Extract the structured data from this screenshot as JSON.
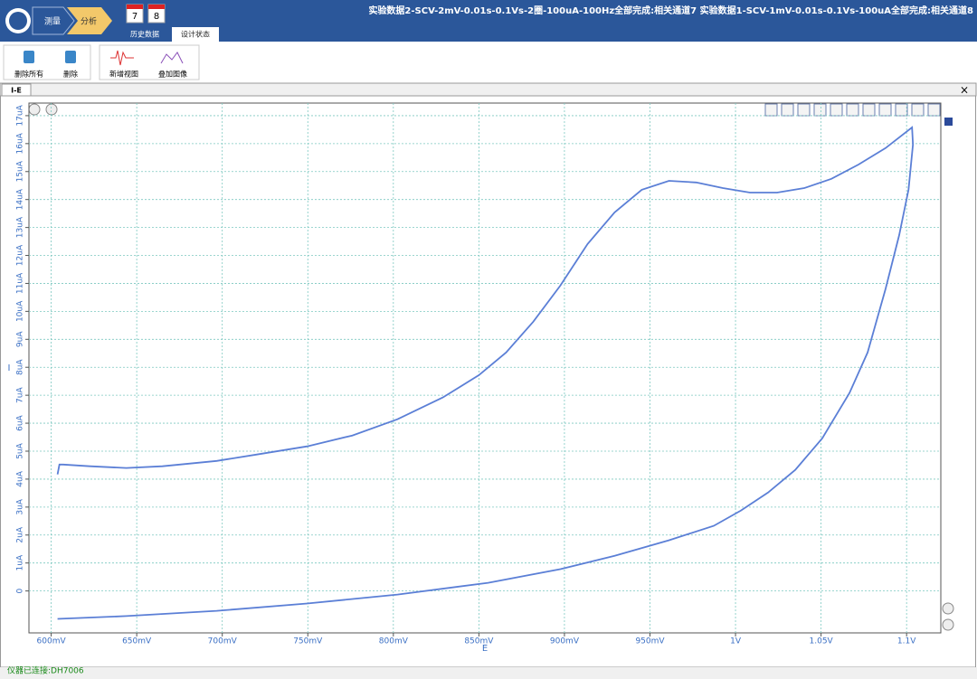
{
  "header": {
    "nav": [
      "测量",
      "分析"
    ],
    "channels": [
      "7",
      "8"
    ],
    "tabs": [
      "历史数据",
      "设计状态"
    ],
    "title": "实验数据2-SCV-2mV-0.01s-0.1Vs-2圈-100uA-100Hz全部完成:相关通道7 实验数据1-SCV-1mV-0.01s-0.1Vs-100uA全部完成:相关通道8"
  },
  "toolbar": {
    "buttons": [
      "删除所有",
      "删除",
      "新增视图",
      "叠加图像"
    ]
  },
  "view_tab": "I-E",
  "status": "仪器已连接:DH7006",
  "chart_data": {
    "type": "line",
    "x_label": "E",
    "y_label": "I",
    "x": [
      0.6037,
      0.6048,
      0.607,
      0.6227,
      0.6439,
      0.665,
      0.6967,
      0.7231,
      0.7496,
      0.776,
      0.8024,
      0.8289,
      0.85,
      0.8659,
      0.8818,
      0.8976,
      0.9135,
      0.9293,
      0.9452,
      0.9611,
      0.977,
      0.9926,
      1.0085,
      1.0243,
      1.0402,
      1.056,
      1.0719,
      1.0877,
      1.1032,
      1.1037,
      1.1011,
      1.0957,
      1.0877,
      1.0772,
      1.0666,
      1.0507,
      1.0349,
      1.019,
      1.0032,
      0.9873,
      0.961,
      0.9293,
      0.8976,
      0.8554,
      0.8024,
      0.7496,
      0.6967,
      0.6439,
      0.6037
    ],
    "series": [
      {
        "name": "I-E",
        "color": "#5b7fd6",
        "values": [
          4.17,
          4.52,
          4.52,
          4.46,
          4.4,
          4.46,
          4.65,
          4.91,
          5.17,
          5.56,
          6.14,
          6.92,
          7.72,
          8.53,
          9.63,
          10.92,
          12.41,
          13.54,
          14.35,
          14.67,
          14.61,
          14.41,
          14.25,
          14.25,
          14.41,
          14.74,
          15.25,
          15.84,
          16.58,
          15.97,
          14.35,
          12.73,
          10.8,
          8.53,
          7.08,
          5.46,
          4.33,
          3.52,
          2.88,
          2.33,
          1.81,
          1.26,
          0.78,
          0.29,
          -0.13,
          -0.45,
          -0.71,
          -0.9,
          -1.0
        ]
      }
    ],
    "xlim": [
      0.587,
      1.12
    ],
    "ylim": [
      -1.5,
      17.45
    ],
    "xticks": [
      {
        "value": 0.6,
        "label": "600mV"
      },
      {
        "value": 0.65,
        "label": "650mV"
      },
      {
        "value": 0.7,
        "label": "700mV"
      },
      {
        "value": 0.75,
        "label": "750mV"
      },
      {
        "value": 0.8,
        "label": "800mV"
      },
      {
        "value": 0.85,
        "label": "850mV"
      },
      {
        "value": 0.9,
        "label": "900mV"
      },
      {
        "value": 0.95,
        "label": "950mV"
      },
      {
        "value": 1,
        "label": "1V"
      },
      {
        "value": 1.05,
        "label": "1.05V"
      },
      {
        "value": 1.1,
        "label": "1.1V"
      }
    ],
    "yticks": [
      0,
      {
        "value": 1,
        "label": "1uA"
      },
      {
        "value": 2,
        "label": "2uA"
      },
      {
        "value": 3,
        "label": "3uA"
      },
      {
        "value": 4,
        "label": "4uA"
      },
      {
        "value": 5,
        "label": "5uA"
      },
      {
        "value": 6,
        "label": "6uA"
      },
      {
        "value": 7,
        "label": "7uA"
      },
      {
        "value": 8,
        "label": "8uA"
      },
      {
        "value": 9,
        "label": "9uA"
      },
      {
        "value": 10,
        "label": "10uA"
      },
      {
        "value": 11,
        "label": "11uA"
      },
      {
        "value": 12,
        "label": "12uA"
      },
      {
        "value": 13,
        "label": "13uA"
      },
      {
        "value": 14,
        "label": "14uA"
      },
      {
        "value": 15,
        "label": "15uA"
      },
      {
        "value": 16,
        "label": "16uA"
      },
      {
        "value": 17,
        "label": "17uA"
      }
    ],
    "grid": true
  }
}
